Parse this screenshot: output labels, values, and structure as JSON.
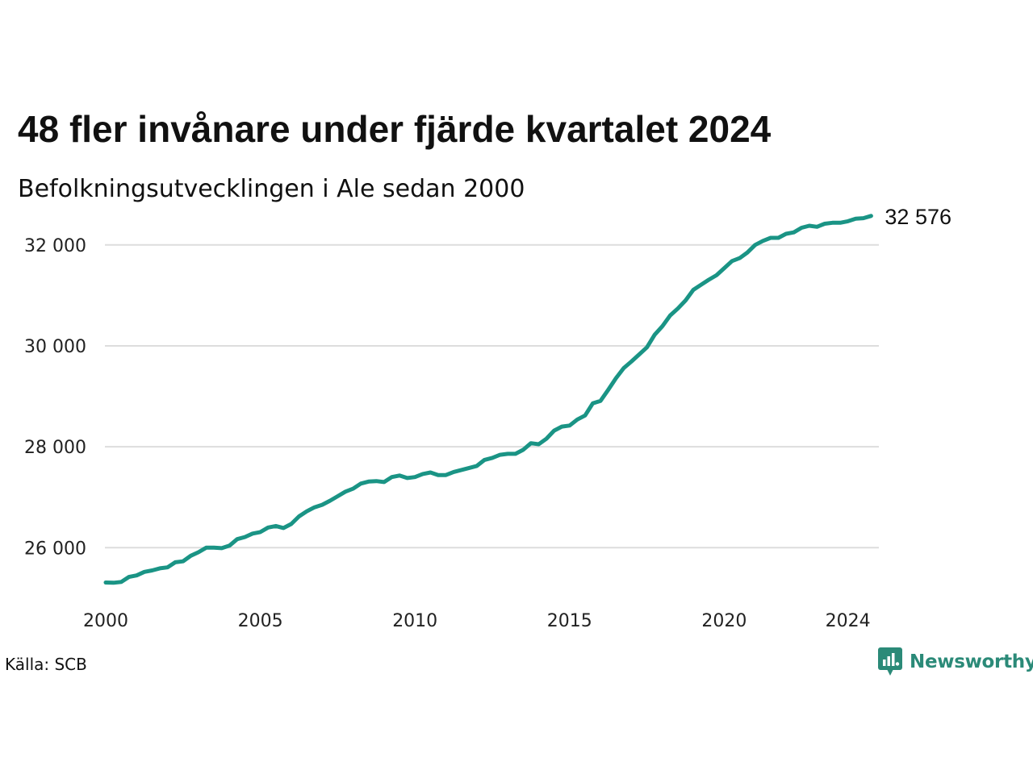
{
  "title": "48 fler invånare under fjärde kvartalet 2024",
  "subtitle": "Befolkningsutvecklingen i Ale sedan 2000",
  "source": "Källa: SCB",
  "brand": {
    "name": "Newsworthy",
    "icon": "newsworthy-logo-icon"
  },
  "colors": {
    "line": "#1a9485",
    "grid": "#dddddd",
    "brand": "#2b8a78"
  },
  "chart_data": {
    "type": "line",
    "title": "48 fler invånare under fjärde kvartalet 2024",
    "subtitle": "Befolkningsutvecklingen i Ale sedan 2000",
    "xlabel": "",
    "ylabel": "",
    "xlim": [
      2000,
      2025
    ],
    "ylim": [
      24950,
      32700
    ],
    "grid": "horizontal",
    "x_ticks": [
      {
        "value": 2000,
        "label": "2000"
      },
      {
        "value": 2005,
        "label": "2005"
      },
      {
        "value": 2010,
        "label": "2010"
      },
      {
        "value": 2015,
        "label": "2015"
      },
      {
        "value": 2020,
        "label": "2020"
      },
      {
        "value": 2024,
        "label": "2024"
      }
    ],
    "y_ticks": [
      {
        "value": 26000,
        "label": "26 000"
      },
      {
        "value": 28000,
        "label": "28 000"
      },
      {
        "value": 30000,
        "label": "30 000"
      },
      {
        "value": 32000,
        "label": "32 000"
      }
    ],
    "end_label": "32 576",
    "x": [
      2000.0,
      2000.25,
      2000.5,
      2000.75,
      2001.0,
      2001.25,
      2001.5,
      2001.75,
      2002.0,
      2002.25,
      2002.5,
      2002.75,
      2003.0,
      2003.25,
      2003.5,
      2003.75,
      2004.0,
      2004.25,
      2004.5,
      2004.75,
      2005.0,
      2005.25,
      2005.5,
      2005.75,
      2006.0,
      2006.25,
      2006.5,
      2006.75,
      2007.0,
      2007.25,
      2007.5,
      2007.75,
      2008.0,
      2008.25,
      2008.5,
      2008.75,
      2009.0,
      2009.25,
      2009.5,
      2009.75,
      2010.0,
      2010.25,
      2010.5,
      2010.75,
      2011.0,
      2011.25,
      2011.5,
      2011.75,
      2012.0,
      2012.25,
      2012.5,
      2012.75,
      2013.0,
      2013.25,
      2013.5,
      2013.75,
      2014.0,
      2014.25,
      2014.5,
      2014.75,
      2015.0,
      2015.25,
      2015.5,
      2015.75,
      2016.0,
      2016.25,
      2016.5,
      2016.75,
      2017.0,
      2017.25,
      2017.5,
      2017.75,
      2018.0,
      2018.25,
      2018.5,
      2018.75,
      2019.0,
      2019.25,
      2019.5,
      2019.75,
      2020.0,
      2020.25,
      2020.5,
      2020.75,
      2021.0,
      2021.25,
      2021.5,
      2021.75,
      2022.0,
      2022.25,
      2022.5,
      2022.75,
      2023.0,
      2023.25,
      2023.5,
      2023.75,
      2024.0,
      2024.25,
      2024.5,
      2024.75
    ],
    "series": [
      {
        "values": [
          25310,
          25305,
          25320,
          25420,
          25450,
          25520,
          25550,
          25590,
          25610,
          25710,
          25730,
          25840,
          25910,
          26000,
          26000,
          25990,
          26040,
          26170,
          26210,
          26280,
          26310,
          26400,
          26430,
          26390,
          26470,
          26620,
          26720,
          26800,
          26850,
          26930,
          27020,
          27110,
          27170,
          27270,
          27310,
          27320,
          27300,
          27400,
          27430,
          27380,
          27400,
          27460,
          27490,
          27440,
          27440,
          27500,
          27540,
          27580,
          27620,
          27740,
          27780,
          27840,
          27860,
          27860,
          27940,
          28070,
          28050,
          28160,
          28320,
          28400,
          28420,
          28540,
          28620,
          28860,
          28910,
          29130,
          29360,
          29560,
          29690,
          29830,
          29970,
          30220,
          30390,
          30600,
          30740,
          30900,
          31110,
          31210,
          31310,
          31400,
          31540,
          31680,
          31740,
          31850,
          32000,
          32080,
          32140,
          32140,
          32220,
          32250,
          32340,
          32380,
          32360,
          32420,
          32440,
          32440,
          32470,
          32520,
          32530,
          32576
        ]
      }
    ]
  }
}
